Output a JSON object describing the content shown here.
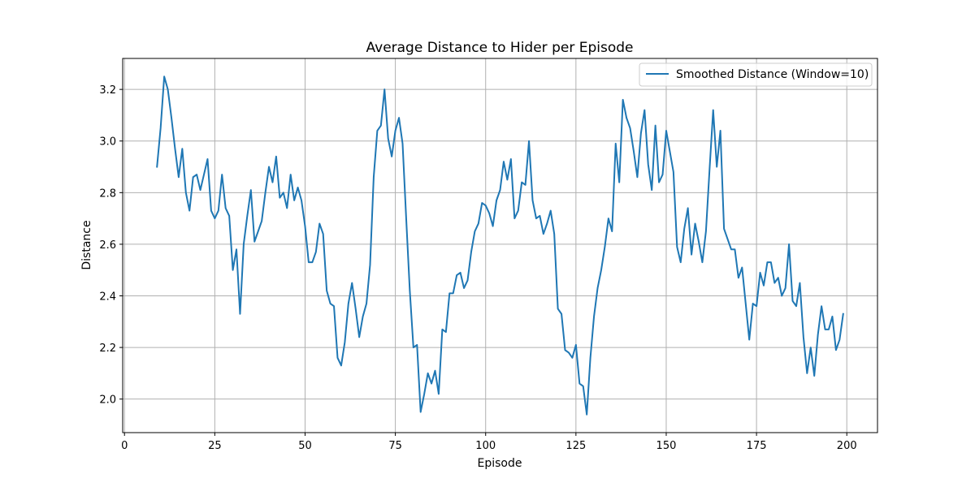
{
  "chart_data": {
    "type": "line",
    "title": "Average Distance to Hider per Episode",
    "xlabel": "Episode",
    "ylabel": "Distance",
    "xlim": [
      -0.5,
      208.5
    ],
    "ylim": [
      1.87,
      3.32
    ],
    "xticks": [
      0,
      25,
      50,
      75,
      100,
      125,
      150,
      175,
      200
    ],
    "yticks": [
      2.0,
      2.2,
      2.4,
      2.6,
      2.8,
      3.0,
      3.2
    ],
    "ytick_labels": [
      "2.0",
      "2.2",
      "2.4",
      "2.6",
      "2.8",
      "3.0",
      "3.2"
    ],
    "grid": true,
    "legend_position": "top-right",
    "colors": {
      "series": "#1f77b4",
      "grid": "#b0b0b0",
      "axes": "#000000"
    },
    "series": [
      {
        "name": "Smoothed Distance (Window=10)",
        "x_start": 9,
        "values": [
          2.9,
          3.05,
          3.25,
          3.2,
          3.09,
          2.97,
          2.86,
          2.97,
          2.8,
          2.73,
          2.86,
          2.87,
          2.81,
          2.87,
          2.93,
          2.73,
          2.7,
          2.73,
          2.87,
          2.74,
          2.71,
          2.5,
          2.58,
          2.33,
          2.6,
          2.71,
          2.81,
          2.61,
          2.65,
          2.69,
          2.8,
          2.9,
          2.84,
          2.94,
          2.78,
          2.8,
          2.74,
          2.87,
          2.77,
          2.82,
          2.77,
          2.67,
          2.53,
          2.53,
          2.57,
          2.68,
          2.64,
          2.42,
          2.37,
          2.36,
          2.16,
          2.13,
          2.22,
          2.37,
          2.45,
          2.35,
          2.24,
          2.32,
          2.37,
          2.52,
          2.86,
          3.04,
          3.06,
          3.2,
          3.01,
          2.94,
          3.04,
          3.09,
          2.99,
          2.7,
          2.42,
          2.2,
          2.21,
          1.95,
          2.02,
          2.1,
          2.06,
          2.11,
          2.02,
          2.27,
          2.26,
          2.41,
          2.41,
          2.48,
          2.49,
          2.43,
          2.46,
          2.57,
          2.65,
          2.68,
          2.76,
          2.75,
          2.72,
          2.67,
          2.77,
          2.81,
          2.92,
          2.85,
          2.93,
          2.7,
          2.73,
          2.84,
          2.83,
          3.0,
          2.77,
          2.7,
          2.71,
          2.64,
          2.68,
          2.73,
          2.64,
          2.35,
          2.33,
          2.19,
          2.18,
          2.16,
          2.21,
          2.06,
          2.05,
          1.94,
          2.16,
          2.32,
          2.43,
          2.5,
          2.59,
          2.7,
          2.65,
          2.99,
          2.84,
          3.16,
          3.09,
          3.05,
          2.96,
          2.86,
          3.03,
          3.12,
          2.91,
          2.81,
          3.06,
          2.84,
          2.87,
          3.04,
          2.96,
          2.88,
          2.59,
          2.53,
          2.66,
          2.74,
          2.56,
          2.68,
          2.61,
          2.53,
          2.65,
          2.89,
          3.12,
          2.9,
          3.04,
          2.66,
          2.62,
          2.58,
          2.58,
          2.47,
          2.51,
          2.37,
          2.23,
          2.37,
          2.36,
          2.49,
          2.44,
          2.53,
          2.53,
          2.45,
          2.47,
          2.4,
          2.43,
          2.6,
          2.38,
          2.36,
          2.45,
          2.24,
          2.1,
          2.2,
          2.09,
          2.25,
          2.36,
          2.27,
          2.27,
          2.32,
          2.19,
          2.23,
          2.33
        ]
      }
    ]
  }
}
